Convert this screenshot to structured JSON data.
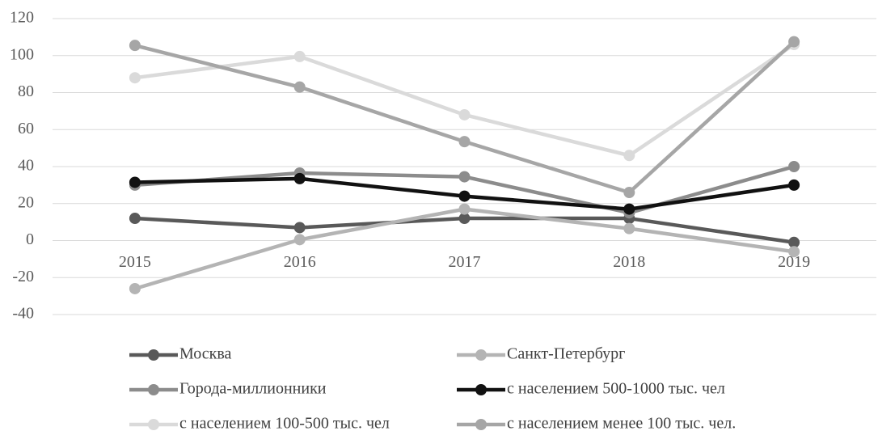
{
  "chart_data": {
    "type": "line",
    "categories": [
      "2015",
      "2016",
      "2017",
      "2018",
      "2019"
    ],
    "series": [
      {
        "name": "Москва",
        "color": "#595959",
        "values": [
          12,
          7,
          12,
          12,
          -1
        ]
      },
      {
        "name": "Санкт-Петербург",
        "color": "#b4b4b4",
        "values": [
          -26,
          0.5,
          17,
          6.5,
          -6
        ]
      },
      {
        "name": "Города-миллионники",
        "color": "#8c8c8c",
        "values": [
          30,
          36.5,
          34.5,
          15,
          40
        ]
      },
      {
        "name": "с населением 500-1000 тыс. чел",
        "color": "#111111",
        "values": [
          31.5,
          33.5,
          24,
          17,
          30
        ]
      },
      {
        "name": "с населением 100-500 тыс. чел",
        "color": "#dadada",
        "values": [
          88,
          99.5,
          68,
          46,
          106
        ]
      },
      {
        "name": "с населением менее 100 тыс. чел.",
        "color": "#a6a6a6",
        "values": [
          105.5,
          83,
          53.5,
          26,
          107.5
        ]
      }
    ],
    "ylim": [
      -40,
      120
    ],
    "yticks": [
      -40,
      -20,
      0,
      20,
      40,
      60,
      80,
      100,
      120
    ],
    "grid": true,
    "legend": "bottom"
  }
}
